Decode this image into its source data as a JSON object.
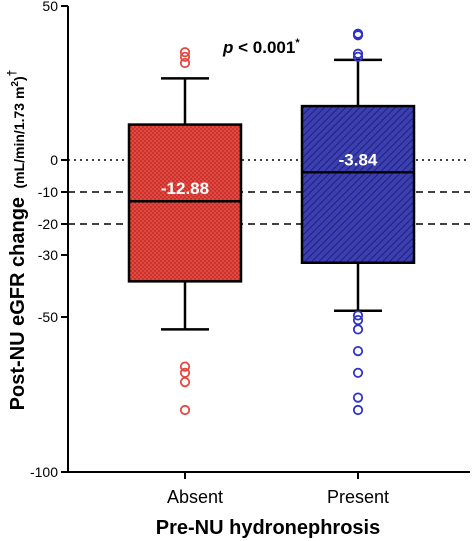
{
  "chart_data": {
    "type": "box",
    "ylim": [
      -100,
      50
    ],
    "yticks": [
      50,
      0,
      -10,
      -20,
      -30,
      -50,
      -100
    ],
    "ytick_labels": [
      "50",
      "0",
      "-10",
      "-20",
      "-30",
      "-50",
      "-100"
    ],
    "ylabel_main": "Post-NU eGFR change",
    "ylabel_unit": "(mL/min/1.73 m",
    "ylabel_sup": "2",
    "ylabel_close": ")",
    "ylabel_dagger": "†",
    "xlabel": "Pre-NU hydronephrosis",
    "categories": [
      "Absent",
      "Present"
    ],
    "reference_lines": [
      {
        "y": 0,
        "style": "dotted"
      },
      {
        "y": -10,
        "style": "dashed"
      },
      {
        "y": -20,
        "style": "dashed"
      }
    ],
    "pvalue": {
      "italic": "p",
      "text": " < 0.001",
      "sup": "*"
    },
    "boxes": [
      {
        "category": "Absent",
        "q1": -38.5,
        "median": -12.88,
        "q3": 11.5,
        "whisker_low": -54,
        "whisker_high": 26.5,
        "median_label": "-12.88",
        "fill": "#e8463f",
        "edge": "#000000",
        "pattern": "dots",
        "outlier_color": "#e8463f",
        "outliers": [
          35,
          33.5,
          31.5,
          -66,
          -68,
          -71,
          -80
        ]
      },
      {
        "category": "Present",
        "q1": -32.5,
        "median": -3.84,
        "q3": 17.5,
        "whisker_low": -48,
        "whisker_high": 32.5,
        "median_label": "-3.84",
        "fill": "#3b3fb0",
        "edge": "#000000",
        "pattern": "hatch",
        "outlier_color": "#2f33c8",
        "outliers": [
          41,
          40.5,
          34.5,
          33.5,
          -49.5,
          -51,
          -54,
          -61,
          -68,
          -76,
          -80
        ]
      }
    ]
  }
}
